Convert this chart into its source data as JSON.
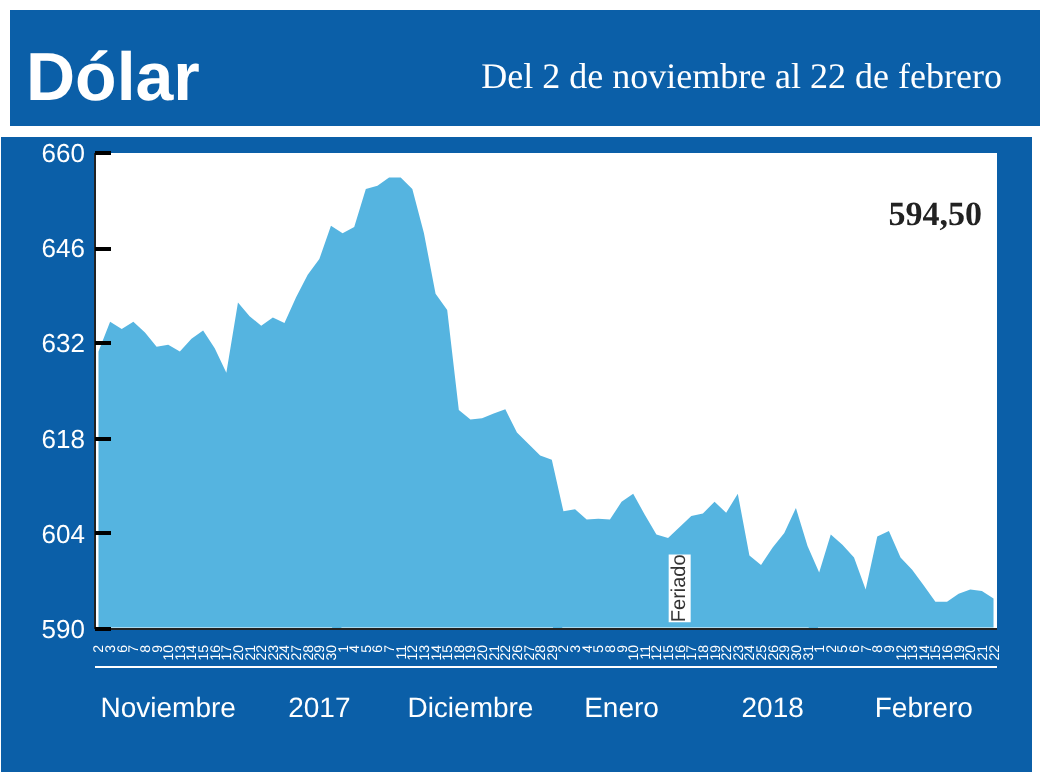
{
  "chart_data": {
    "type": "area",
    "title": "Dólar",
    "subtitle": "Del 2 de noviembre al 22 de febrero",
    "categories": [
      "2",
      "3",
      "6",
      "7",
      "8",
      "9",
      "10",
      "13",
      "14",
      "15",
      "16",
      "17",
      "20",
      "21",
      "22",
      "23",
      "24",
      "27",
      "28",
      "29",
      "30",
      "1",
      "4",
      "5",
      "6",
      "7",
      "11",
      "12",
      "13",
      "14",
      "15",
      "18",
      "19",
      "20",
      "21",
      "22",
      "26",
      "27",
      "28",
      "29",
      "2",
      "3",
      "4",
      "5",
      "8",
      "9",
      "10",
      "11",
      "12",
      "15",
      "16",
      "17",
      "18",
      "19",
      "22",
      "23",
      "24",
      "25",
      "26",
      "29",
      "30",
      "31",
      "1",
      "2",
      "5",
      "6",
      "7",
      "8",
      "9",
      "12",
      "13",
      "14",
      "15",
      "16",
      "19",
      "20",
      "21",
      "22"
    ],
    "series": [
      {
        "color": "#55b4e0",
        "values": [
          630.8,
          635.2,
          634.1,
          635.2,
          633.6,
          631.5,
          631.8,
          630.8,
          632.7,
          633.9,
          631.3,
          627.7,
          638.0,
          636.0,
          634.6,
          635.8,
          635.0,
          638.8,
          642.1,
          644.4,
          649.3,
          648.2,
          649.1,
          654.7,
          655.2,
          656.4,
          656.4,
          654.7,
          648.2,
          639.3,
          636.9,
          622.2,
          620.8,
          621.0,
          621.7,
          622.3,
          618.9,
          617.2,
          615.5,
          614.9,
          607.3,
          607.6,
          606.1,
          606.2,
          606.1,
          608.7,
          609.9,
          606.8,
          603.9,
          603.4,
          null,
          606.6,
          607.0,
          608.7,
          607.1,
          609.9,
          600.8,
          599.4,
          602.0,
          604.1,
          607.8,
          602.2,
          598.3,
          603.9,
          602.4,
          600.5,
          595.8,
          603.6,
          604.4,
          600.5,
          598.7,
          596.4,
          594.0,
          594.0,
          595.2,
          595.8,
          595.6,
          594.5
        ]
      }
    ],
    "ylim": [
      590,
      660
    ],
    "yticks": [
      590,
      604,
      618,
      632,
      646,
      660
    ],
    "grid": false,
    "annotations": [
      "594,50",
      "Feriado",
      "Noviembre",
      "2017",
      "Diciembre",
      "Enero",
      "2018",
      "Febrero"
    ]
  }
}
